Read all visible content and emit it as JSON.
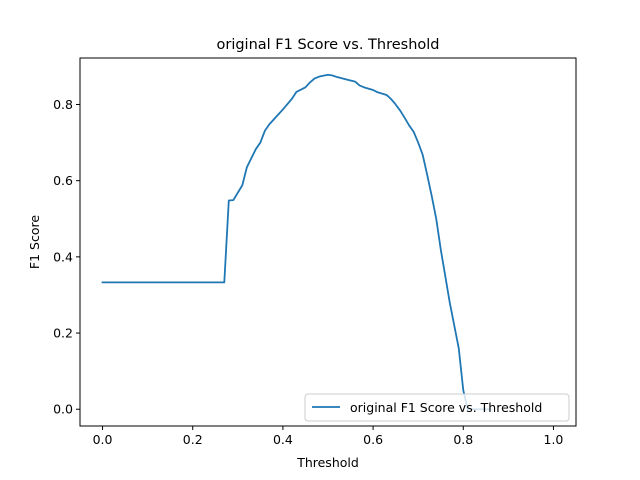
{
  "chart_data": {
    "type": "line",
    "title": "original F1 Score vs. Threshold",
    "xlabel": "Threshold",
    "ylabel": "F1 Score",
    "xlim": [
      -0.05,
      1.05
    ],
    "ylim": [
      -0.044,
      0.922
    ],
    "xticks": [
      0.0,
      0.2,
      0.4,
      0.6,
      0.8,
      1.0
    ],
    "xtick_labels": [
      "0.0",
      "0.2",
      "0.4",
      "0.6",
      "0.8",
      "1.0"
    ],
    "yticks": [
      0.0,
      0.2,
      0.4,
      0.6,
      0.8
    ],
    "ytick_labels": [
      "0.0",
      "0.2",
      "0.4",
      "0.6",
      "0.8"
    ],
    "grid": false,
    "legend_position": "lower right",
    "series": [
      {
        "name": "original F1 Score vs. Threshold",
        "color": "#1f77b4",
        "x": [
          0.0,
          0.27,
          0.28,
          0.29,
          0.31,
          0.32,
          0.34,
          0.35,
          0.36,
          0.37,
          0.39,
          0.4,
          0.42,
          0.43,
          0.45,
          0.46,
          0.47,
          0.48,
          0.5,
          0.51,
          0.52,
          0.54,
          0.56,
          0.57,
          0.58,
          0.6,
          0.61,
          0.63,
          0.64,
          0.65,
          0.66,
          0.67,
          0.68,
          0.69,
          0.7,
          0.71,
          0.72,
          0.73,
          0.74,
          0.75,
          0.76,
          0.77,
          0.78,
          0.79,
          0.8,
          0.81,
          0.82,
          0.83,
          0.85,
          0.86
        ],
        "values": [
          0.333,
          0.333,
          0.548,
          0.549,
          0.588,
          0.635,
          0.683,
          0.7,
          0.731,
          0.748,
          0.774,
          0.787,
          0.815,
          0.833,
          0.845,
          0.858,
          0.868,
          0.873,
          0.878,
          0.876,
          0.872,
          0.866,
          0.86,
          0.85,
          0.845,
          0.838,
          0.832,
          0.825,
          0.814,
          0.8,
          0.784,
          0.765,
          0.745,
          0.728,
          0.7,
          0.668,
          0.615,
          0.56,
          0.5,
          0.42,
          0.35,
          0.28,
          0.22,
          0.16,
          0.05,
          0.0,
          0.0,
          0.0,
          0.0,
          0.0
        ]
      }
    ]
  }
}
